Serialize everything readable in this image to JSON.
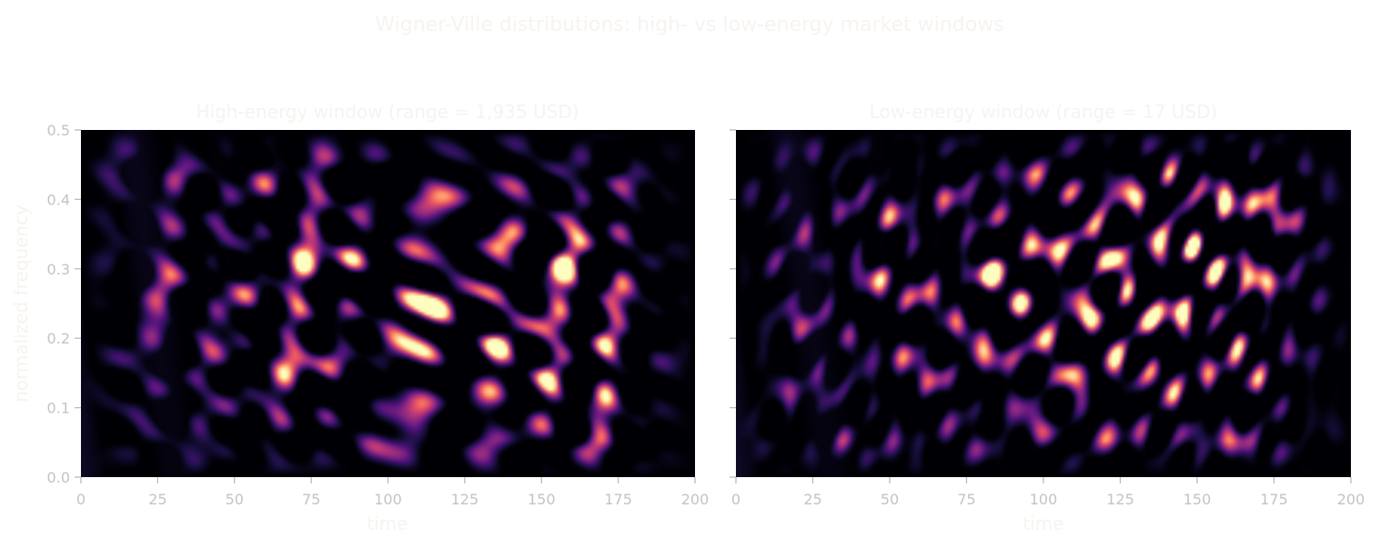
{
  "figure": {
    "title": "Wigner-Ville distributions: high- vs low-energy market windows"
  },
  "colormap": [
    "#000004",
    "#1d1147",
    "#51127c",
    "#822681",
    "#b63679",
    "#e65164",
    "#fb8861",
    "#fec287",
    "#fcfdbf"
  ],
  "chart_data": [
    {
      "type": "heatmap",
      "title": "High-energy window  (range = 1,935 USD)",
      "xlabel": "time",
      "ylabel": "normalized frequency",
      "xlim": [
        0,
        200
      ],
      "ylim": [
        0,
        0.5
      ],
      "xticks": [
        "0",
        "25",
        "50",
        "75",
        "100",
        "125",
        "150",
        "175",
        "200"
      ],
      "yticks": [
        "0.0",
        "0.1",
        "0.2",
        "0.3",
        "0.4",
        "0.5"
      ],
      "colormap": "magma",
      "energy_center": [
        125,
        0.25
      ],
      "description_seed": 11
    },
    {
      "type": "heatmap",
      "title": "Low-energy window  (range = 17 USD)",
      "xlabel": "time",
      "ylabel": "",
      "xlim": [
        0,
        200
      ],
      "ylim": [
        0,
        0.5
      ],
      "xticks": [
        "0",
        "25",
        "50",
        "75",
        "100",
        "125",
        "150",
        "175",
        "200"
      ],
      "yticks": [],
      "colormap": "magma",
      "energy_center": [
        130,
        0.3
      ],
      "description_seed": 29
    }
  ]
}
